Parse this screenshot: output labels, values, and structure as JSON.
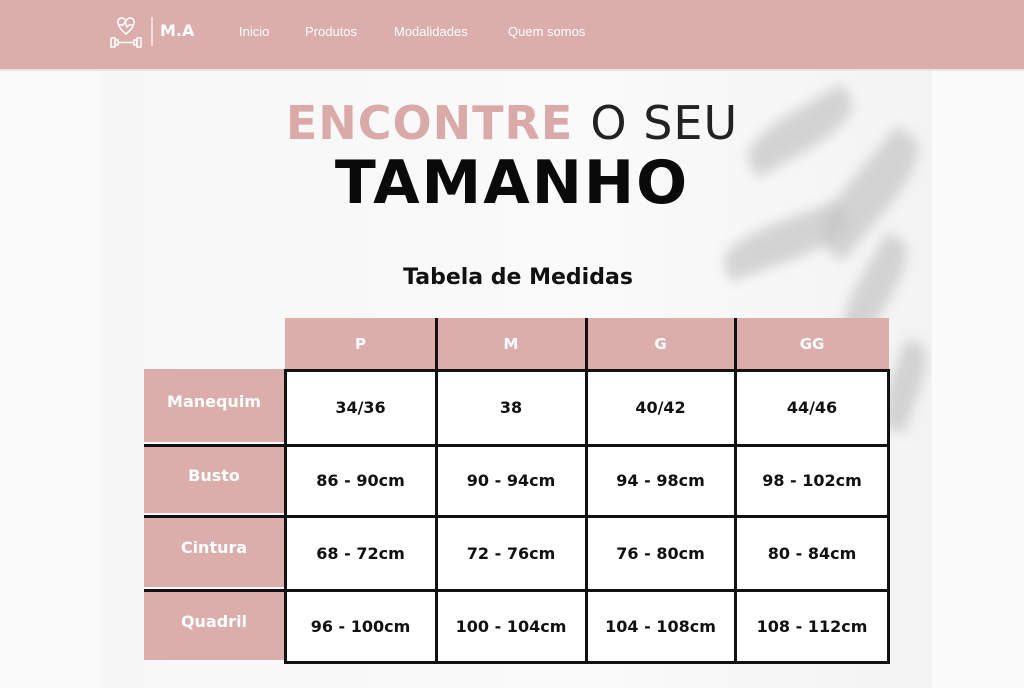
{
  "nav": {
    "brand": "M.A",
    "links": [
      "Inicio",
      "Produtos",
      "Modalidades",
      "Quem somos"
    ],
    "logo_icon": "heart-dumbbell-icon"
  },
  "colors": {
    "accent": "#dbadab"
  },
  "hero": {
    "line1_pink": "ENCONTRE",
    "line1_dark": "O SEU",
    "line2": "TAMANHO"
  },
  "table": {
    "title": "Tabela de Medidas",
    "columns": [
      "P",
      "M",
      "G",
      "GG"
    ],
    "rows": [
      {
        "label": "Manequim",
        "values": [
          "34/36",
          "38",
          "40/42",
          "44/46"
        ]
      },
      {
        "label": "Busto",
        "values": [
          "86 - 90cm",
          "90 - 94cm",
          "94 - 98cm",
          "98 - 102cm"
        ]
      },
      {
        "label": "Cintura",
        "values": [
          "68 - 72cm",
          "72 - 76cm",
          "76 - 80cm",
          "80 - 84cm"
        ]
      },
      {
        "label": "Quadril",
        "values": [
          "96 - 100cm",
          "100 - 104cm",
          "104 - 108cm",
          "108 - 112cm"
        ]
      }
    ]
  }
}
